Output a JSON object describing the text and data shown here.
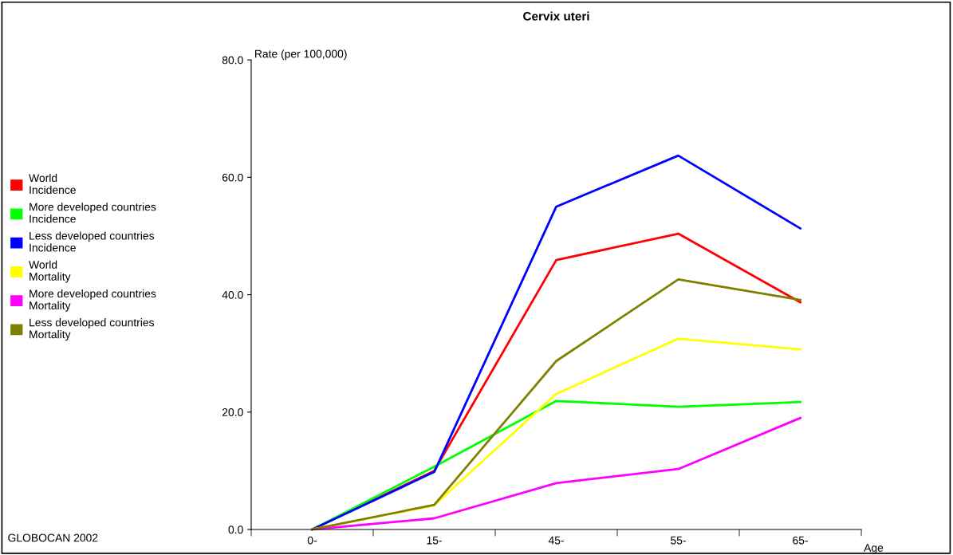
{
  "chart_data": {
    "type": "line",
    "title": "Cervix uteri",
    "ylabel": "Rate (per 100,000)",
    "xlabel": "Age",
    "categories": [
      "0-",
      "15-",
      "45-",
      "55-",
      "65-"
    ],
    "series": [
      {
        "name": "World\nIncidence",
        "color": "#ff0000",
        "values": [
          0,
          10.0,
          45.9,
          50.4,
          38.7
        ]
      },
      {
        "name": "More developed countries\nIncidence",
        "color": "#00ff00",
        "values": [
          0,
          10.7,
          21.9,
          20.9,
          21.7
        ]
      },
      {
        "name": "Less developed countries\nIncidence",
        "color": "#0000ff",
        "values": [
          0,
          9.8,
          55.0,
          63.7,
          51.3
        ]
      },
      {
        "name": "World\nMortality",
        "color": "#ffff00",
        "values": [
          0,
          4.1,
          23.1,
          32.5,
          30.7
        ]
      },
      {
        "name": "More developed countries\nMortality",
        "color": "#ff00ff",
        "values": [
          0,
          1.9,
          7.9,
          10.3,
          19.0
        ]
      },
      {
        "name": "Less developed countries\nMortality",
        "color": "#808000",
        "values": [
          0,
          4.2,
          28.7,
          42.6,
          39.1
        ]
      }
    ],
    "ylim": [
      0,
      80
    ],
    "yticks": [
      {
        "value": 0,
        "label": "0.0"
      },
      {
        "value": 20,
        "label": "20.0"
      },
      {
        "value": 40,
        "label": "40.0"
      },
      {
        "value": 60,
        "label": "60.0"
      },
      {
        "value": 80,
        "label": "80.0"
      }
    ],
    "grid": false,
    "legend": "left",
    "marker": "none",
    "line_style": "solid",
    "annotations": [
      "GLOBOCAN 2002"
    ]
  }
}
